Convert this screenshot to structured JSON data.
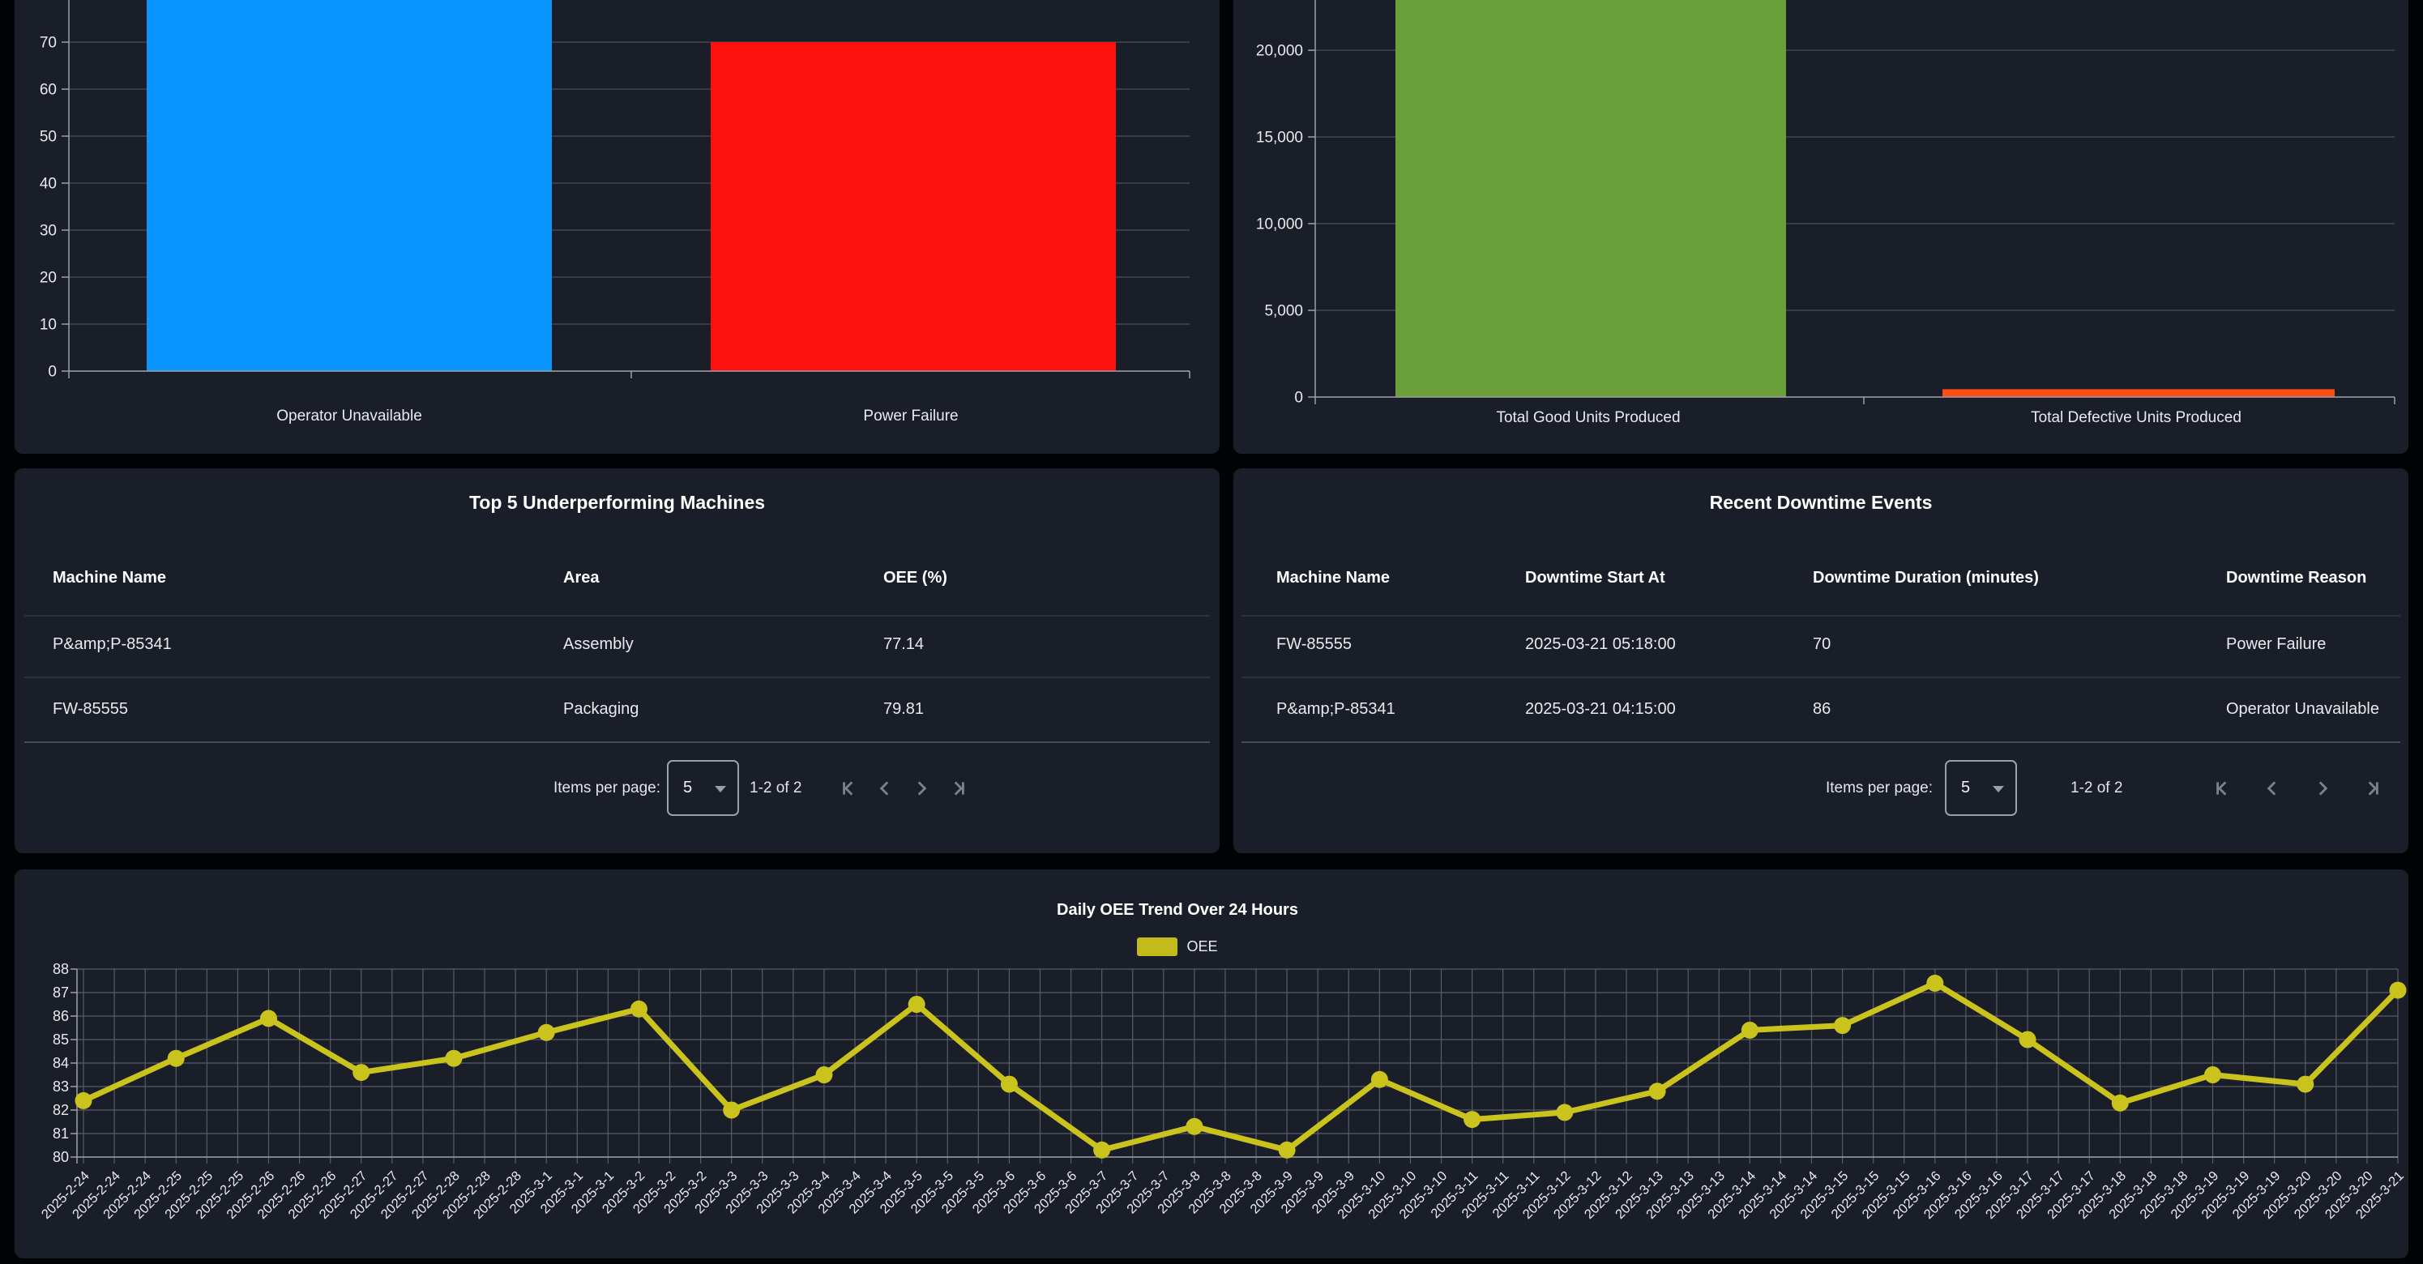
{
  "colors": {
    "page_bg": "#000204",
    "card_bg": "#1a1e28",
    "grid_top_charts": "#424650",
    "grid_line_chart": "#585c64",
    "axis": "#9b9ea5",
    "tick_text": "#e9eaec",
    "bar_blue": "#0996ff",
    "bar_red": "#fd100d",
    "bar_green": "#6aa03a",
    "bar_orange": "#fd4f15",
    "oee_line": "#cbc31d",
    "legend_swatch": "#c3bb1b",
    "icon_gray": "#7d8188"
  },
  "chart_data": [
    {
      "type": "bar",
      "name": "downtime-duration-by-reason",
      "categories": [
        "Operator Unavailable",
        "Power Failure"
      ],
      "values": [
        86,
        70
      ],
      "colors": [
        "#0996ff",
        "#fd100d"
      ],
      "y_ticks": [
        "0",
        "10",
        "20",
        "30",
        "40",
        "50",
        "60",
        "70"
      ],
      "y_tick_step": 10,
      "ylim": [
        0,
        79
      ],
      "grid": "horizontal",
      "legend_position": "cropped-above"
    },
    {
      "type": "bar",
      "name": "units-produced",
      "categories": [
        "Total Good Units Produced",
        "Total Defective Units Produced"
      ],
      "values": [
        23000,
        450
      ],
      "colors": [
        "#6aa03a",
        "#fd4f15"
      ],
      "y_ticks": [
        "0",
        "5,000",
        "10,000",
        "15,000",
        "20,000"
      ],
      "y_tick_step": 5000,
      "ylim": [
        0,
        22900
      ],
      "grid": "horizontal",
      "legend_position": "cropped-above"
    },
    {
      "type": "line",
      "name": "daily-oee-trend",
      "title": "Daily OEE Trend Over 24 Hours",
      "legend": [
        "OEE"
      ],
      "line_color": "#cbc31d",
      "ylim": [
        80,
        88
      ],
      "y_ticks": [
        "80",
        "81",
        "82",
        "83",
        "84",
        "85",
        "86",
        "87",
        "88"
      ],
      "x_label_repeat": 3,
      "x": [
        "2025-2-24",
        "2025-2-25",
        "2025-2-26",
        "2025-2-27",
        "2025-2-28",
        "2025-3-1",
        "2025-3-2",
        "2025-3-3",
        "2025-3-4",
        "2025-3-5",
        "2025-3-6",
        "2025-3-7",
        "2025-3-8",
        "2025-3-9",
        "2025-3-10",
        "2025-3-11",
        "2025-3-12",
        "2025-3-13",
        "2025-3-14",
        "2025-3-15",
        "2025-3-16",
        "2025-3-17",
        "2025-3-18",
        "2025-3-19",
        "2025-3-20",
        "2025-3-21"
      ],
      "values": [
        82.4,
        84.2,
        85.9,
        83.6,
        84.2,
        85.3,
        86.3,
        82.0,
        83.5,
        86.5,
        83.1,
        80.3,
        81.3,
        80.3,
        83.3,
        81.6,
        81.9,
        82.8,
        85.4,
        85.6,
        87.4,
        85.0,
        82.3,
        83.5,
        83.1,
        87.1
      ],
      "grid": "full"
    }
  ],
  "tables": {
    "underperforming": {
      "title": "Top 5 Underperforming Machines",
      "headers": [
        "Machine Name",
        "Area",
        "OEE (%)"
      ],
      "rows": [
        [
          "P&amp;P-85341",
          "Assembly",
          "77.14"
        ],
        [
          "FW-85555",
          "Packaging",
          "79.81"
        ]
      ],
      "paginator": {
        "items_per_page_label": "Items per page:",
        "page_size": "5",
        "range_label": "1-2 of 2"
      }
    },
    "downtime_events": {
      "title": "Recent Downtime Events",
      "headers": [
        "Machine Name",
        "Downtime Start At",
        "Downtime Duration (minutes)",
        "Downtime Reason"
      ],
      "rows": [
        [
          "FW-85555",
          "2025-03-21 05:18:00",
          "70",
          "Power Failure"
        ],
        [
          "P&amp;P-85341",
          "2025-03-21 04:15:00",
          "86",
          "Operator Unavailable"
        ]
      ],
      "paginator": {
        "items_per_page_label": "Items per page:",
        "page_size": "5",
        "range_label": "1-2 of 2"
      }
    }
  }
}
